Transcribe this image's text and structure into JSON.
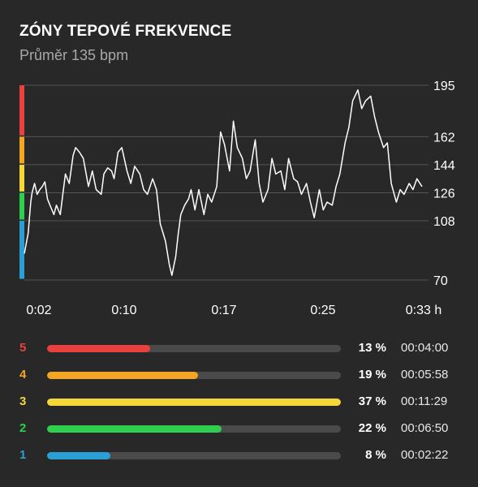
{
  "header": {
    "title": "ZÓNY TEPOVÉ FREKVENCE",
    "subtitle": "Průměr 135 bpm"
  },
  "colors": {
    "zone5": "#e8413e",
    "zone4": "#f2a623",
    "zone3": "#f5d73a",
    "zone2": "#2fce4e",
    "zone1": "#2a9fd6",
    "track": "#4a4a4a",
    "grid": "#555555",
    "line": "#ffffff"
  },
  "chart_data": {
    "type": "line",
    "title": "",
    "xlabel": "",
    "ylabel": "",
    "y_ticks": [
      70,
      108,
      126,
      144,
      162,
      195
    ],
    "ylim": [
      70,
      195
    ],
    "x_tick_labels": [
      "0:02",
      "0:10",
      "0:17",
      "0:25",
      "0:33 h"
    ],
    "xlim_minutes": [
      2,
      33
    ],
    "zone_bounds_bpm": [
      {
        "zone": 5,
        "from": 162,
        "to": 195
      },
      {
        "zone": 4,
        "from": 144,
        "to": 162
      },
      {
        "zone": 3,
        "from": 126,
        "to": 144
      },
      {
        "zone": 2,
        "from": 108,
        "to": 126
      },
      {
        "zone": 1,
        "from": 70,
        "to": 108
      }
    ],
    "series": [
      {
        "x_minutes": [
          2.0,
          2.3,
          2.5,
          2.6,
          2.8,
          3.0,
          3.2,
          3.4,
          3.6,
          3.8,
          4.0,
          4.3,
          4.5,
          4.8,
          5.0,
          5.2,
          5.5,
          5.8,
          6.0,
          6.3,
          6.6,
          7.0,
          7.3,
          7.6,
          8.0,
          8.2,
          8.5,
          8.8,
          9.0,
          9.3,
          9.6,
          10.0,
          10.3,
          10.6,
          11.0,
          11.3,
          11.6,
          12.0,
          12.3,
          12.6,
          13.0,
          13.3,
          13.5,
          13.8,
          14.0,
          14.2,
          14.5,
          14.8,
          15.0,
          15.3,
          15.6,
          16.0,
          16.3,
          16.6,
          17.0,
          17.3,
          17.6,
          18.0,
          18.3,
          18.6,
          19.0,
          19.3,
          19.6,
          20.0,
          20.3,
          20.6,
          21.0,
          21.3,
          21.6,
          22.0,
          22.3,
          22.6,
          23.0,
          23.3,
          23.6,
          24.0,
          24.3,
          24.6,
          25.0,
          25.3,
          25.6,
          26.0,
          26.3,
          26.6,
          27.0,
          27.3,
          27.6,
          28.0,
          28.3,
          28.6,
          29.0,
          29.3,
          29.6,
          30.0,
          30.3,
          30.6,
          31.0,
          31.3,
          31.6,
          32.0,
          32.3,
          32.6,
          33.0
        ],
        "y_bpm": [
          87,
          100,
          120,
          126,
          132,
          125,
          128,
          130,
          133,
          122,
          118,
          112,
          118,
          112,
          125,
          138,
          132,
          150,
          155,
          152,
          148,
          130,
          140,
          128,
          125,
          138,
          142,
          140,
          135,
          152,
          155,
          140,
          132,
          143,
          138,
          128,
          125,
          135,
          128,
          106,
          95,
          80,
          73,
          85,
          100,
          112,
          118,
          122,
          128,
          115,
          128,
          112,
          125,
          120,
          130,
          165,
          157,
          140,
          172,
          155,
          148,
          135,
          140,
          160,
          132,
          120,
          128,
          148,
          138,
          140,
          128,
          148,
          135,
          133,
          125,
          132,
          120,
          110,
          128,
          115,
          120,
          118,
          130,
          138,
          158,
          168,
          185,
          192,
          180,
          185,
          188,
          175,
          165,
          155,
          158,
          132,
          120,
          128,
          125,
          132,
          128,
          135,
          130
        ]
      }
    ]
  },
  "zones": [
    {
      "label": "5",
      "percent": 13,
      "percent_text": "13 %",
      "time": "00:04:00",
      "color": "#e8413e"
    },
    {
      "label": "4",
      "percent": 19,
      "percent_text": "19 %",
      "time": "00:05:58",
      "color": "#f2a623"
    },
    {
      "label": "3",
      "percent": 37,
      "percent_text": "37 %",
      "time": "00:11:29",
      "color": "#f5d73a"
    },
    {
      "label": "2",
      "percent": 22,
      "percent_text": "22 %",
      "time": "00:06:50",
      "color": "#2fce4e"
    },
    {
      "label": "1",
      "percent": 8,
      "percent_text": "8 %",
      "time": "00:02:22",
      "color": "#2a9fd6"
    }
  ],
  "zone_bar_max_percent": 37
}
